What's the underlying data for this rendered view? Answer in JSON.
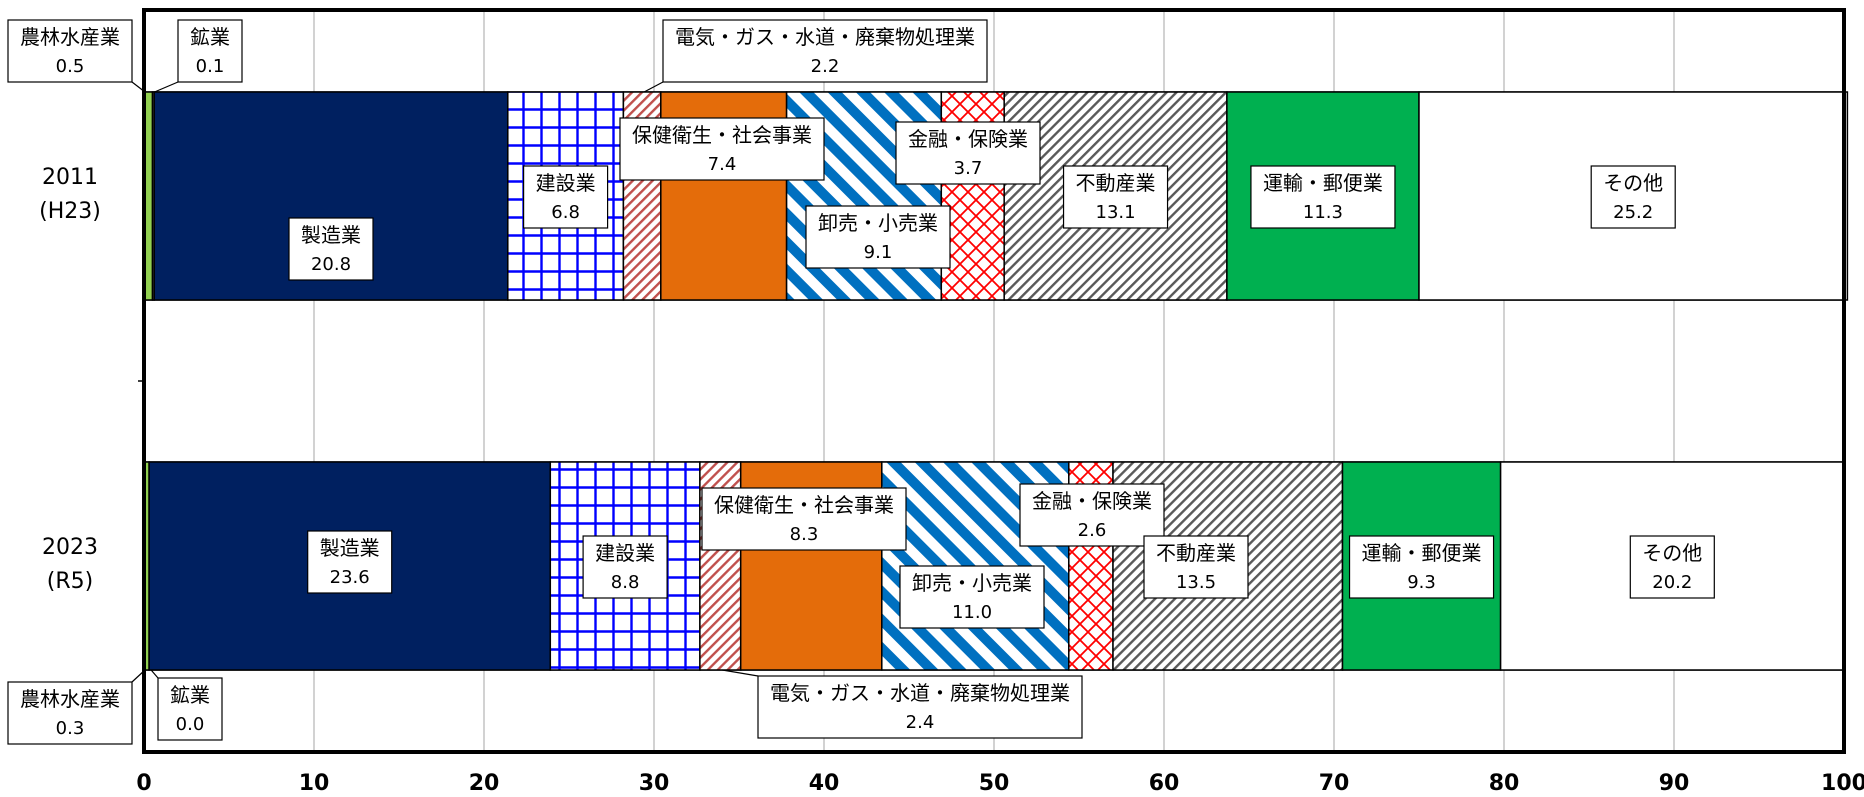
{
  "chart_data": {
    "type": "bar",
    "orientation": "horizontal",
    "stacked": "percent",
    "xlim": [
      0,
      100
    ],
    "x_ticks": [
      "0",
      "10",
      "20",
      "30",
      "40",
      "50",
      "60",
      "70",
      "80",
      "90",
      "100"
    ],
    "grid": "vertical",
    "rows": [
      {
        "line1": "2011",
        "line2": "(H23)"
      },
      {
        "line1": "2023",
        "line2": "(R5)"
      }
    ],
    "segments": [
      {
        "name": "農林水産業",
        "values": [
          "0.5",
          "0.3"
        ],
        "color": "#92d050",
        "fill": "solid"
      },
      {
        "name": "鉱業",
        "values": [
          "0.1",
          "0.0"
        ],
        "color": "#7f7f7f",
        "fill": "solid"
      },
      {
        "name": "製造業",
        "values": [
          "20.8",
          "23.6"
        ],
        "color": "#002060",
        "fill": "solid"
      },
      {
        "name": "建設業",
        "values": [
          "6.8",
          "8.8"
        ],
        "color": "#0000ff",
        "fill": "grid"
      },
      {
        "name": "電気・ガス・水道・廃棄物処理業",
        "values": [
          "2.2",
          "2.4"
        ],
        "color": "#c0504d",
        "fill": "hatch"
      },
      {
        "name": "保健衛生・社会事業",
        "values": [
          "7.4",
          "8.3"
        ],
        "color": "#e46c0a",
        "fill": "solid"
      },
      {
        "name": "卸売・小売業",
        "values": [
          "9.1",
          "11.0"
        ],
        "color": "#0070c0",
        "fill": "stripe"
      },
      {
        "name": "金融・保険業",
        "values": [
          "3.7",
          "2.6"
        ],
        "color": "#ff0000",
        "fill": "diamond"
      },
      {
        "name": "不動産業",
        "values": [
          "13.1",
          "13.5"
        ],
        "color": "#595959",
        "fill": "hatch"
      },
      {
        "name": "運輸・郵便業",
        "values": [
          "11.3",
          "9.3"
        ],
        "color": "#00b050",
        "fill": "solid"
      },
      {
        "name": "その他",
        "values": [
          "25.2",
          "20.2"
        ],
        "color": "#ffffff",
        "fill": "solid"
      }
    ]
  }
}
